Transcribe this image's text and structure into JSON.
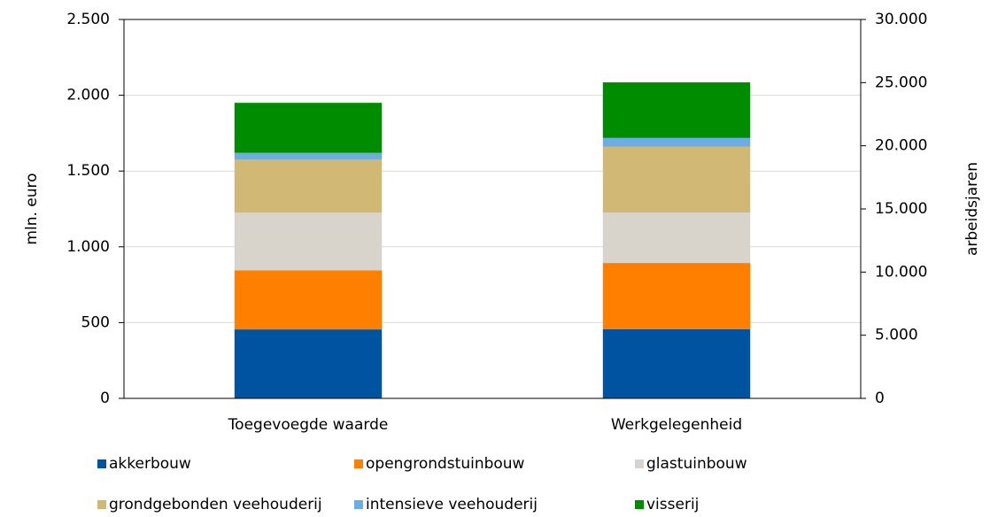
{
  "chart_data": {
    "type": "stacked_bar",
    "categories": [
      "Toegevoegde waarde",
      "Werkgelegenheid"
    ],
    "category_axes": [
      "y",
      "y2"
    ],
    "series": [
      {
        "name": "akkerbouw",
        "color": "#0053a0",
        "values": [
          455,
          5470
        ]
      },
      {
        "name": "opengrondstuinbouw",
        "color": "#ff7f00",
        "values": [
          390,
          5250
        ]
      },
      {
        "name": "glastuinbouw",
        "color": "#d8d4cc",
        "values": [
          380,
          4000
        ]
      },
      {
        "name": "grondgebonden veehouderij",
        "color": "#d1b874",
        "values": [
          350,
          5200
        ]
      },
      {
        "name": "intensieve veehouderij",
        "color": "#6aaee3",
        "values": [
          45,
          700
        ]
      },
      {
        "name": "visserij",
        "color": "#008c00",
        "values": [
          330,
          4400
        ]
      }
    ],
    "ylabel": "mln. euro",
    "y2label": "arbeidsjaren",
    "ylim": [
      0,
      2500
    ],
    "yticks": [
      0,
      500,
      {
        "value": 1000,
        "label": "1.000"
      },
      {
        "value": 1500,
        "label": "1.500"
      },
      {
        "value": 2000,
        "label": "2.000"
      },
      {
        "value": 2500,
        "label": "2.500"
      }
    ],
    "y2lim": [
      0,
      30000
    ],
    "y2ticks": [
      0,
      {
        "value": 5000,
        "label": "5.000"
      },
      {
        "value": 10000,
        "label": "10.000"
      },
      {
        "value": 15000,
        "label": "15.000"
      },
      {
        "value": 20000,
        "label": "20.000"
      },
      {
        "value": 25000,
        "label": "25.000"
      },
      {
        "value": 30000,
        "label": "30.000"
      }
    ],
    "grid": true
  }
}
